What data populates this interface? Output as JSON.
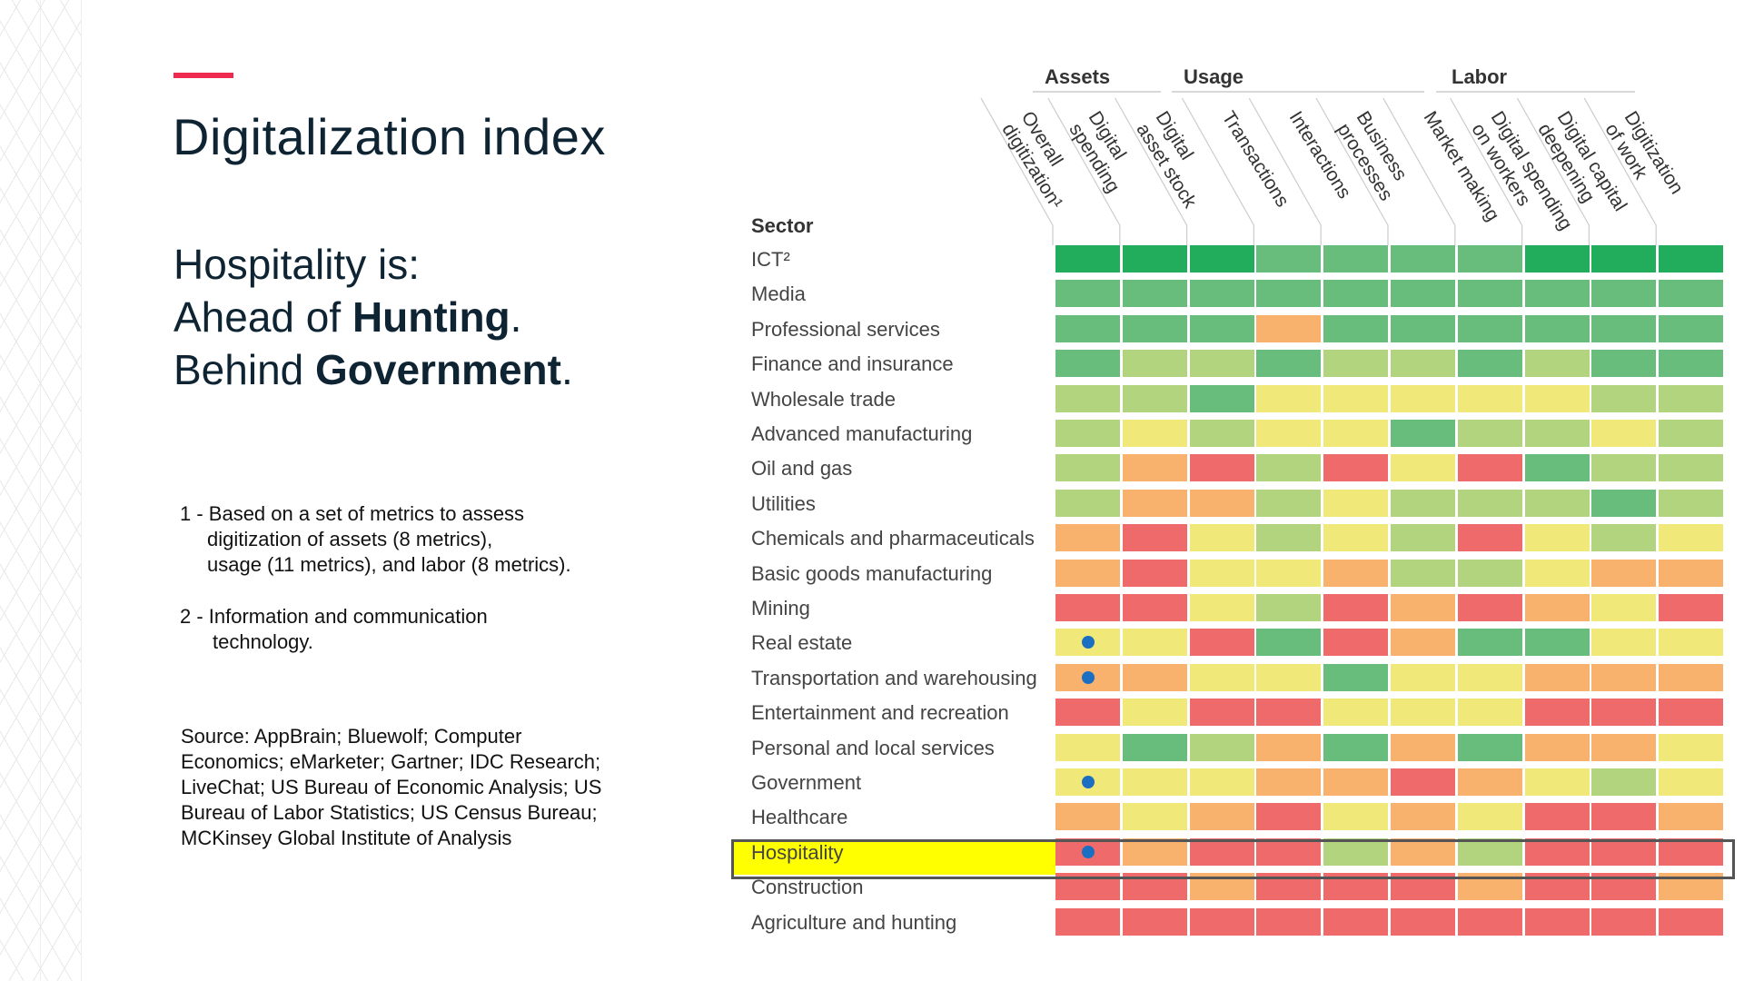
{
  "slide": {
    "title": "Digitalization index",
    "tagline": {
      "line1": "Hospitality is:",
      "line2_prefix": "Ahead of ",
      "line2_bold": "Hunting",
      "line2_suffix": ".",
      "line3_prefix": "Behind ",
      "line3_bold": "Government",
      "line3_suffix": "."
    },
    "footnotes": [
      {
        "line1": "1 - Based on a set of metrics to assess",
        "line2": "digitization of assets (8 metrics),",
        "line3": "usage (11 metrics), and labor (8 metrics)."
      },
      {
        "line1": "2 - Information and communication",
        "line2": "technology."
      }
    ],
    "source": [
      "Source: AppBrain; Bluewolf; Computer",
      "Economics; eMarketer; Gartner; IDC Research;",
      "LiveChat; US Bureau of Economic Analysis; US",
      "Bureau of Labor Statistics; US Census Bureau;",
      "MCKinsey Global Institute of Analysis"
    ],
    "accent_color": "#ee2a4f"
  },
  "chart_data": {
    "type": "heatmap",
    "row_header": "Sector",
    "groups": [
      {
        "name": "Assets"
      },
      {
        "name": "Usage"
      },
      {
        "name": "Labor"
      }
    ],
    "columns": [
      [
        "Overall",
        "digitization¹"
      ],
      [
        "Digital",
        "spending"
      ],
      [
        "Digital",
        "asset stock"
      ],
      [
        "Transactions"
      ],
      [
        "Interactions"
      ],
      [
        "Business",
        "processes"
      ],
      [
        "Market making"
      ],
      [
        "Digital spending",
        "on workers"
      ],
      [
        "Digital capital",
        "deepening"
      ],
      [
        "Digitization",
        "of work"
      ]
    ],
    "palette": {
      "D": "#22ad5c",
      "G": "#68bd7d",
      "L": "#b3d47f",
      "Y": "#f1e87a",
      "O": "#f8b26e",
      "R": "#ef6b6b"
    },
    "levels_high_to_low": [
      "D",
      "G",
      "L",
      "Y",
      "O",
      "R"
    ],
    "marker_color": "#1a6fc2",
    "highlight_color": "#ffff00",
    "highlighted_row": "Hospitality",
    "rows": [
      {
        "sector": "ICT²",
        "cells": [
          "D",
          "D",
          "D",
          "G",
          "G",
          "G",
          "G",
          "D",
          "D",
          "D"
        ],
        "marker": false
      },
      {
        "sector": "Media",
        "cells": [
          "G",
          "G",
          "G",
          "G",
          "G",
          "G",
          "G",
          "G",
          "G",
          "G"
        ],
        "marker": false
      },
      {
        "sector": "Professional services",
        "cells": [
          "G",
          "G",
          "G",
          "O",
          "G",
          "G",
          "G",
          "G",
          "G",
          "G"
        ],
        "marker": false
      },
      {
        "sector": "Finance and insurance",
        "cells": [
          "G",
          "L",
          "L",
          "G",
          "L",
          "L",
          "G",
          "L",
          "G",
          "G"
        ],
        "marker": false
      },
      {
        "sector": "Wholesale trade",
        "cells": [
          "L",
          "L",
          "G",
          "Y",
          "Y",
          "Y",
          "Y",
          "Y",
          "L",
          "L"
        ],
        "marker": false
      },
      {
        "sector": "Advanced manufacturing",
        "cells": [
          "L",
          "Y",
          "L",
          "Y",
          "Y",
          "G",
          "L",
          "L",
          "Y",
          "L"
        ],
        "marker": false
      },
      {
        "sector": "Oil and gas",
        "cells": [
          "L",
          "O",
          "R",
          "L",
          "R",
          "Y",
          "R",
          "G",
          "L",
          "L"
        ],
        "marker": false
      },
      {
        "sector": "Utilities",
        "cells": [
          "L",
          "O",
          "O",
          "L",
          "Y",
          "L",
          "L",
          "L",
          "G",
          "L"
        ],
        "marker": false
      },
      {
        "sector": "Chemicals and pharmaceuticals",
        "cells": [
          "O",
          "R",
          "Y",
          "L",
          "Y",
          "L",
          "R",
          "Y",
          "L",
          "Y"
        ],
        "marker": false
      },
      {
        "sector": "Basic goods manufacturing",
        "cells": [
          "O",
          "R",
          "Y",
          "Y",
          "O",
          "L",
          "L",
          "Y",
          "O",
          "O"
        ],
        "marker": false
      },
      {
        "sector": "Mining",
        "cells": [
          "R",
          "R",
          "Y",
          "L",
          "R",
          "O",
          "R",
          "O",
          "Y",
          "R"
        ],
        "marker": false
      },
      {
        "sector": "Real estate",
        "cells": [
          "Y",
          "Y",
          "R",
          "G",
          "R",
          "O",
          "G",
          "G",
          "Y",
          "Y"
        ],
        "marker": true
      },
      {
        "sector": "Transportation and warehousing",
        "cells": [
          "O",
          "O",
          "Y",
          "Y",
          "G",
          "Y",
          "Y",
          "O",
          "O",
          "O"
        ],
        "marker": true
      },
      {
        "sector": "Entertainment and recreation",
        "cells": [
          "R",
          "Y",
          "R",
          "R",
          "Y",
          "Y",
          "Y",
          "R",
          "R",
          "R"
        ],
        "marker": false
      },
      {
        "sector": "Personal and local services",
        "cells": [
          "Y",
          "G",
          "L",
          "O",
          "G",
          "O",
          "G",
          "O",
          "O",
          "Y"
        ],
        "marker": false
      },
      {
        "sector": "Government",
        "cells": [
          "Y",
          "Y",
          "Y",
          "O",
          "O",
          "R",
          "O",
          "Y",
          "L",
          "Y"
        ],
        "marker": true
      },
      {
        "sector": "Healthcare",
        "cells": [
          "O",
          "Y",
          "O",
          "R",
          "Y",
          "O",
          "Y",
          "R",
          "R",
          "O"
        ],
        "marker": false
      },
      {
        "sector": "Hospitality",
        "cells": [
          "R",
          "O",
          "R",
          "R",
          "L",
          "O",
          "L",
          "R",
          "R",
          "R"
        ],
        "marker": true
      },
      {
        "sector": "Construction",
        "cells": [
          "R",
          "R",
          "O",
          "R",
          "R",
          "R",
          "O",
          "R",
          "R",
          "O"
        ],
        "marker": false
      },
      {
        "sector": "Agriculture and hunting",
        "cells": [
          "R",
          "R",
          "R",
          "R",
          "R",
          "R",
          "R",
          "R",
          "R",
          "R"
        ],
        "marker": false
      }
    ]
  }
}
